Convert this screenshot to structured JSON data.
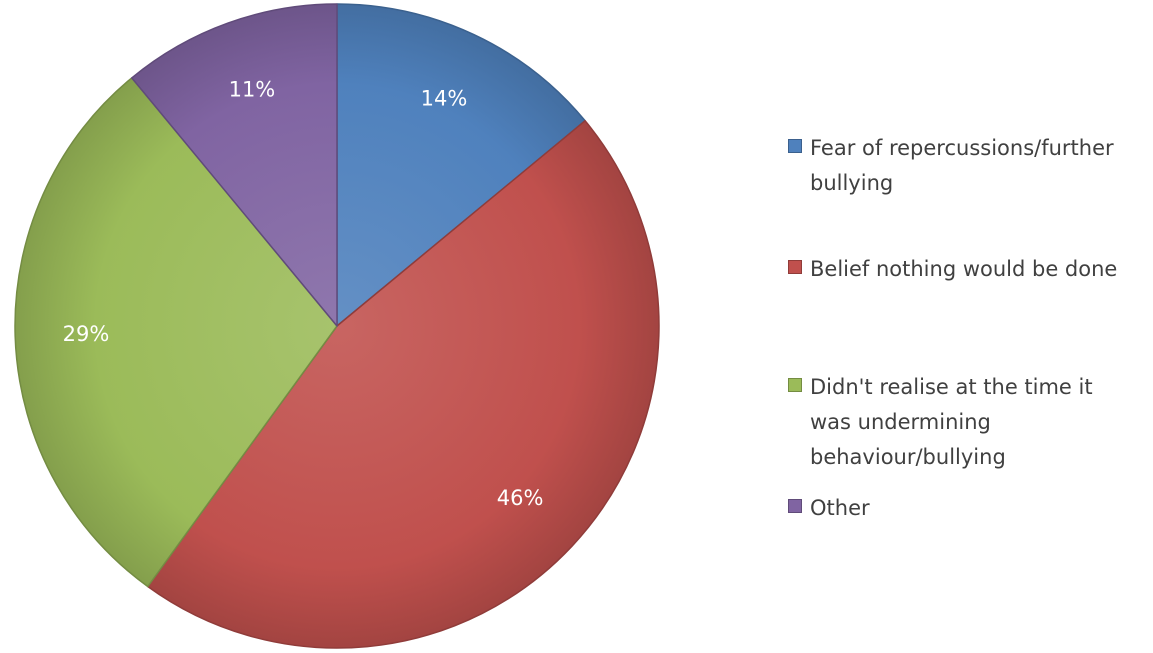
{
  "chart_data": {
    "type": "pie",
    "title": "",
    "categories": [
      "Fear of repercussions/further\nbullying",
      "Belief nothing would be done",
      "Didn't realise at the time it\nwas undermining\nbehaviour/bullying",
      "Other"
    ],
    "values": [
      14,
      46,
      29,
      11
    ],
    "value_labels": [
      "14%",
      "46%",
      "29%",
      "11%"
    ],
    "colors": [
      "#4f81bd",
      "#c0504d",
      "#9bbb59",
      "#8064a2"
    ],
    "start_angle_deg": 0,
    "direction": "clockwise",
    "legend_position": "right"
  }
}
